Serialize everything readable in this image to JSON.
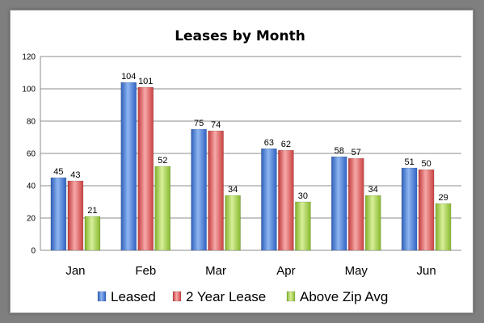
{
  "chart_data": {
    "type": "bar",
    "title": "Leases by Month",
    "xlabel": "",
    "ylabel": "",
    "categories": [
      "Jan",
      "Feb",
      "Mar",
      "Apr",
      "May",
      "Jun"
    ],
    "series": [
      {
        "name": "Leased",
        "values": [
          45,
          104,
          75,
          63,
          58,
          51
        ],
        "color": "#4f81d6"
      },
      {
        "name": "2 Year Lease",
        "values": [
          43,
          101,
          74,
          62,
          57,
          50
        ],
        "color": "#e06060"
      },
      {
        "name": "Above Zip Avg",
        "values": [
          21,
          52,
          34,
          30,
          34,
          29
        ],
        "color": "#a6d150"
      }
    ],
    "ylim": [
      0,
      120
    ],
    "yticks": [
      0,
      20,
      40,
      60,
      80,
      100,
      120
    ],
    "grid": true,
    "legend_position": "bottom"
  }
}
